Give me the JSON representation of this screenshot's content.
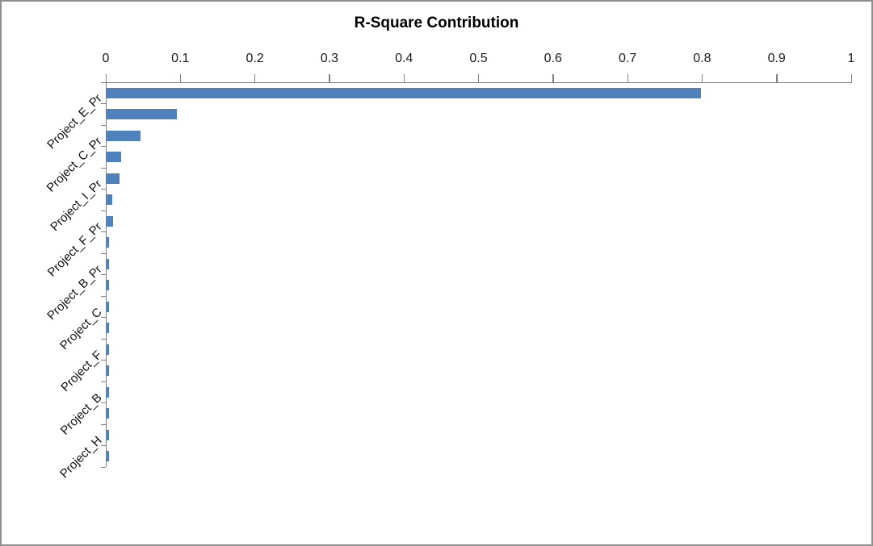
{
  "chart_data": {
    "type": "bar",
    "orientation": "horizontal",
    "title": "R-Square Contribution",
    "x_axis": {
      "position": "top",
      "min": 0,
      "max": 1,
      "tick_interval": 0.1,
      "tick_labels": [
        "0",
        "0.1",
        "0.2",
        "0.3",
        "0.4",
        "0.5",
        "0.6",
        "0.7",
        "0.8",
        "0.9",
        "1"
      ]
    },
    "y_axis": {
      "visible_category_labels": [
        "Project_E_Pr",
        "Project_C_Pr",
        "Project_I_Pr",
        "Project_F_Pr",
        "Project_B_Pr",
        "Project_C",
        "Project_F",
        "Project_B",
        "Project_H"
      ],
      "labels_shown_every_n_categories": 2,
      "label_rotation_deg": 45
    },
    "num_bars": 18,
    "values": [
      0.797,
      0.094,
      0.045,
      0.02,
      0.017,
      0.008,
      0.009,
      0.003,
      0.003,
      0.003,
      0.003,
      0.003,
      0.003,
      0.003,
      0.003,
      0.003,
      0.003,
      0.003
    ],
    "grid": false,
    "legend": false,
    "styles": {
      "bar_color": "#4F81BD",
      "axis_color": "#808080",
      "text_color": "#111111",
      "background": "#FFFFFF",
      "frame_border_color": "#8F8F8F"
    }
  }
}
